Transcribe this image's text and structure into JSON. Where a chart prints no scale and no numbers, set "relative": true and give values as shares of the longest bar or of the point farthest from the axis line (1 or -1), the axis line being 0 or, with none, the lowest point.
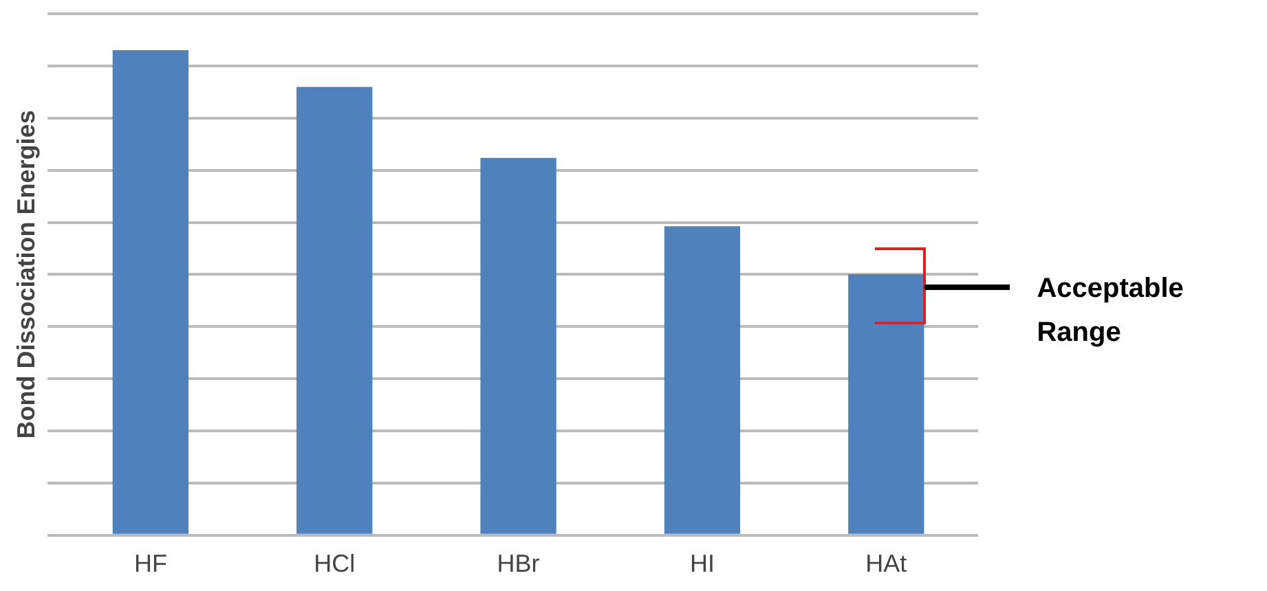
{
  "chart_data": {
    "type": "bar",
    "ylabel": "Bond Dissociation Energies",
    "relative": true,
    "categories": [
      "HF",
      "HCl",
      "HBr",
      "HI",
      "HAt"
    ],
    "values": [
      1,
      0.924,
      0.778,
      0.637,
      0.538
    ],
    "color": "#4f81bd",
    "annotations": [
      "Acceptable Range"
    ],
    "grid": "y",
    "legend": false
  }
}
